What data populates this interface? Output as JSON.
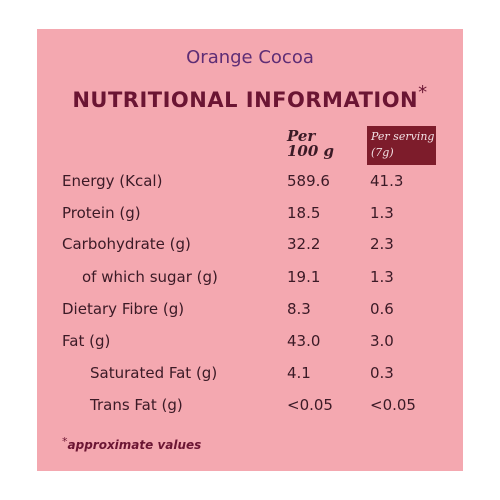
{
  "header": {
    "product_name": "Orange Cocoa",
    "title": "NUTRITIONAL INFORMATION",
    "title_marker": "*"
  },
  "columns": {
    "per_100g_line1": "Per",
    "per_100g_line2": "100 g",
    "per_serving_line1": "Per serving",
    "per_serving_line2": "(7g)"
  },
  "rows": [
    {
      "label": "Energy (Kcal)",
      "per_100g": "589.6",
      "per_serving": "41.3"
    },
    {
      "label": "Protein (g)",
      "per_100g": "18.5",
      "per_serving": "1.3"
    },
    {
      "label": "Carbohydrate (g)",
      "per_100g": "32.2",
      "per_serving": "2.3"
    },
    {
      "label": "of which sugar (g)",
      "per_100g": "19.1",
      "per_serving": "1.3"
    },
    {
      "label": "Dietary Fibre (g)",
      "per_100g": "8.3",
      "per_serving": "0.6"
    },
    {
      "label": "Fat (g)",
      "per_100g": "43.0",
      "per_serving": "3.0"
    },
    {
      "label": "Saturated Fat (g)",
      "per_100g": "4.1",
      "per_serving": "0.3"
    },
    {
      "label": "Trans Fat (g)",
      "per_100g": "<0.05",
      "per_serving": "<0.05"
    }
  ],
  "footnote": {
    "marker": "*",
    "text": "approximate values"
  },
  "colors": {
    "background": "#f4a8b0",
    "title": "#6b1533",
    "subtitle": "#5e2d75",
    "serving_header_bg": "#7d1c2b",
    "text": "#3b1a26"
  }
}
